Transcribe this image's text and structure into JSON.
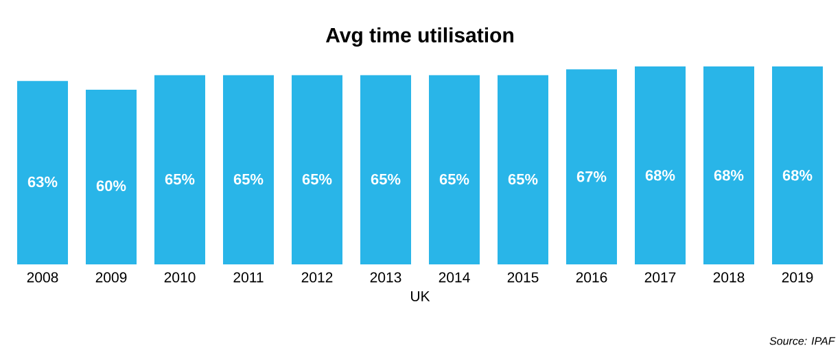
{
  "chart_data": {
    "type": "bar",
    "title": "Avg time utilisation",
    "xlabel": "UK",
    "categories": [
      "2008",
      "2009",
      "2010",
      "2011",
      "2012",
      "2013",
      "2014",
      "2015",
      "2016",
      "2017",
      "2018",
      "2019"
    ],
    "values": [
      63,
      60,
      65,
      65,
      65,
      65,
      65,
      65,
      67,
      68,
      68,
      68
    ],
    "value_labels": [
      "63%",
      "60%",
      "65%",
      "65%",
      "65%",
      "65%",
      "65%",
      "65%",
      "67%",
      "68%",
      "68%",
      "68%"
    ],
    "color": "#29b5e8",
    "ylim": [
      0,
      68
    ],
    "tick_labels": "x",
    "annotations": [
      "Source: IPAF"
    ]
  }
}
